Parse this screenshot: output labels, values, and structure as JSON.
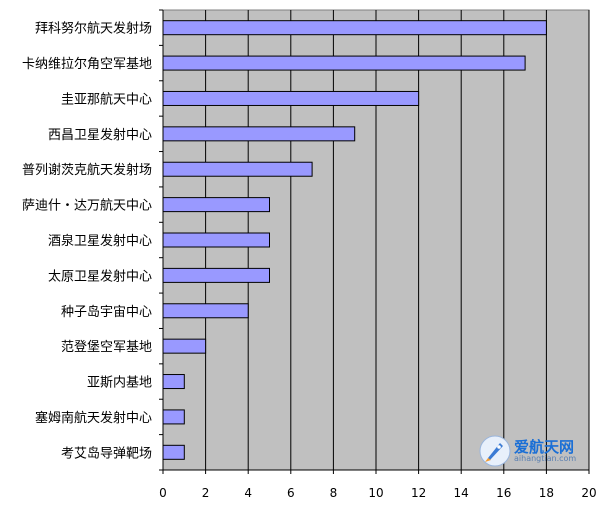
{
  "chart_data": {
    "type": "bar",
    "orientation": "horizontal",
    "categories": [
      "拜科努尔航天发射场",
      "卡纳维拉尔角空军基地",
      "圭亚那航天中心",
      "西昌卫星发射中心",
      "普列谢茨克航天发射场",
      "萨迪什・达万航天中心",
      "酒泉卫星发射中心",
      "太原卫星发射中心",
      "种子岛宇宙中心",
      "范登堡空军基地",
      "亚斯内基地",
      "塞姆南航天发射中心",
      "考艾岛导弹靶场"
    ],
    "values": [
      18,
      17,
      12,
      9,
      7,
      5,
      5,
      5,
      4,
      2,
      1,
      1,
      1
    ],
    "xlim": [
      0,
      20
    ],
    "xticks": [
      "0",
      "2",
      "4",
      "6",
      "8",
      "10",
      "12",
      "14",
      "16",
      "18",
      "20"
    ],
    "grid": true,
    "colors": {
      "plot_bg": "#c0c0c0",
      "bar_fill": "#9999ff",
      "bar_stroke": "#000000",
      "grid": "#000000"
    }
  },
  "watermark": {
    "name_cn": "爱航天网",
    "url": "aihangtian.com"
  }
}
